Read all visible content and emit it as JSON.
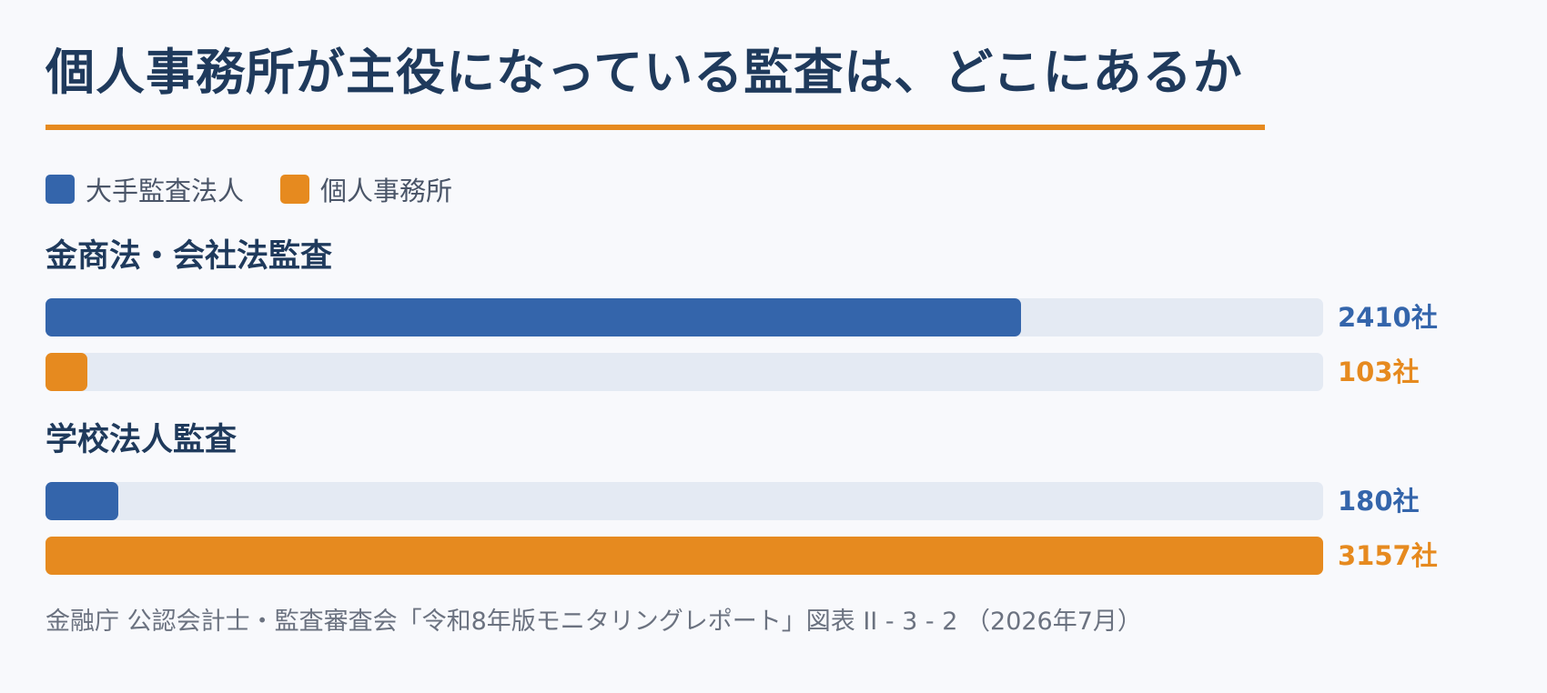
{
  "header": {
    "title": "個人事務所が主役になっている監査は、どこにあるか"
  },
  "legend": [
    {
      "label": "大手監査法人",
      "color": "#3465ab"
    },
    {
      "label": "個人事務所",
      "color": "#e68a1f"
    }
  ],
  "chart_data": {
    "type": "bar",
    "orientation": "horizontal",
    "title": "個人事務所が主役になっている監査は、どこにあるか",
    "categories": [
      "金商法・会社法監査",
      "学校法人監査"
    ],
    "series": [
      {
        "name": "大手監査法人",
        "color": "#3465ab",
        "values": [
          2410,
          180
        ],
        "labels": [
          "2410社",
          "180社"
        ]
      },
      {
        "name": "個人事務所",
        "color": "#e68a1f",
        "values": [
          103,
          3157
        ],
        "labels": [
          "103社",
          "3157社"
        ]
      }
    ],
    "xlim": [
      0,
      3157
    ],
    "legend": "top-left",
    "grid": false
  },
  "footer": {
    "source": "金融庁 公認会計士・監査審査会「令和8年版モニタリングレポート」図表 II - 3 - 2 （2026年7月）"
  }
}
